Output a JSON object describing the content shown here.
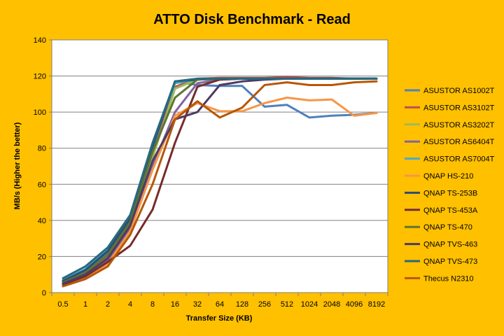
{
  "chart_data": {
    "type": "line",
    "title": "ATTO Disk Benchmark - Read",
    "xlabel": "Transfer Size (KB)",
    "ylabel": "MB/s (Higher the better)",
    "x": [
      "0.5",
      "1",
      "2",
      "4",
      "8",
      "16",
      "32",
      "64",
      "128",
      "256",
      "512",
      "1024",
      "2048",
      "4096",
      "8192"
    ],
    "ylim": [
      0,
      140
    ],
    "yticks": [
      0,
      20,
      40,
      60,
      80,
      100,
      120,
      140
    ],
    "grid": "horizontal",
    "legend_position": "right",
    "series": [
      {
        "name": "ASUSTOR AS1002T",
        "color": "#4F81BD",
        "values": [
          6,
          12,
          22,
          40,
          80,
          117,
          115,
          114.5,
          114.5,
          103,
          104,
          97,
          98,
          98.5,
          99.5
        ]
      },
      {
        "name": "ASUSTOR AS3102T",
        "color": "#C0504D",
        "values": [
          5,
          10,
          20,
          38,
          76,
          114,
          118.5,
          119,
          119,
          119,
          119.5,
          119,
          119,
          118.5,
          118.5
        ]
      },
      {
        "name": "ASUSTOR AS3202T",
        "color": "#9BBB59",
        "values": [
          5,
          10,
          19,
          37,
          75,
          113,
          118,
          118.5,
          118.5,
          118.5,
          118.5,
          118.5,
          118.5,
          118.5,
          118.5
        ]
      },
      {
        "name": "ASUSTOR AS6404T",
        "color": "#8064A2",
        "values": [
          4.5,
          9,
          18,
          35,
          70,
          100,
          116,
          118,
          118.5,
          118.5,
          118.5,
          118.5,
          118.5,
          118.5,
          118.5
        ]
      },
      {
        "name": "ASUSTOR AS7004T",
        "color": "#4BACC6",
        "values": [
          7,
          13,
          24,
          42,
          82,
          116,
          118,
          118.5,
          118.5,
          118.5,
          118.5,
          118.5,
          118.5,
          118.5,
          118.5
        ]
      },
      {
        "name": "QNAP HS-210",
        "color": "#F79646",
        "values": [
          4,
          8,
          16,
          34,
          68,
          98,
          105,
          100.5,
          100.5,
          105,
          108,
          106.5,
          107,
          98,
          99.5
        ]
      },
      {
        "name": "QNAP TS-253B",
        "color": "#2C4D75",
        "values": [
          6.5,
          12.5,
          23,
          41,
          81,
          117,
          118,
          118.5,
          118.5,
          118.5,
          118.5,
          118.5,
          118.5,
          118.5,
          118.5
        ]
      },
      {
        "name": "QNAP TS-453A",
        "color": "#772C2A",
        "values": [
          4.5,
          9,
          17,
          26,
          46,
          83,
          114,
          118,
          118.5,
          118.5,
          118.5,
          118.5,
          118.5,
          118.5,
          118.5
        ]
      },
      {
        "name": "QNAP TS-470",
        "color": "#5F7530",
        "values": [
          5.5,
          11,
          21,
          39,
          78,
          108,
          118,
          118.5,
          118.5,
          118.5,
          118.5,
          118.5,
          118.5,
          118.5,
          118.5
        ]
      },
      {
        "name": "QNAP TVS-463",
        "color": "#4D3B62",
        "values": [
          5,
          10,
          19,
          37,
          73,
          96,
          100,
          115,
          117,
          118,
          118.5,
          118.5,
          118.5,
          118.5,
          118.5
        ]
      },
      {
        "name": "QNAP TVS-473",
        "color": "#276A7C",
        "values": [
          8,
          14.5,
          25,
          43,
          83,
          117,
          118.5,
          118.5,
          118.5,
          118.5,
          118.5,
          118.5,
          118.5,
          118.5,
          118.5
        ]
      },
      {
        "name": "Thecus N2310",
        "color": "#B65708",
        "values": [
          3.5,
          7.5,
          14.5,
          32,
          60,
          96,
          106,
          97,
          102.5,
          115,
          116.5,
          115,
          115,
          116.5,
          117
        ]
      }
    ]
  }
}
